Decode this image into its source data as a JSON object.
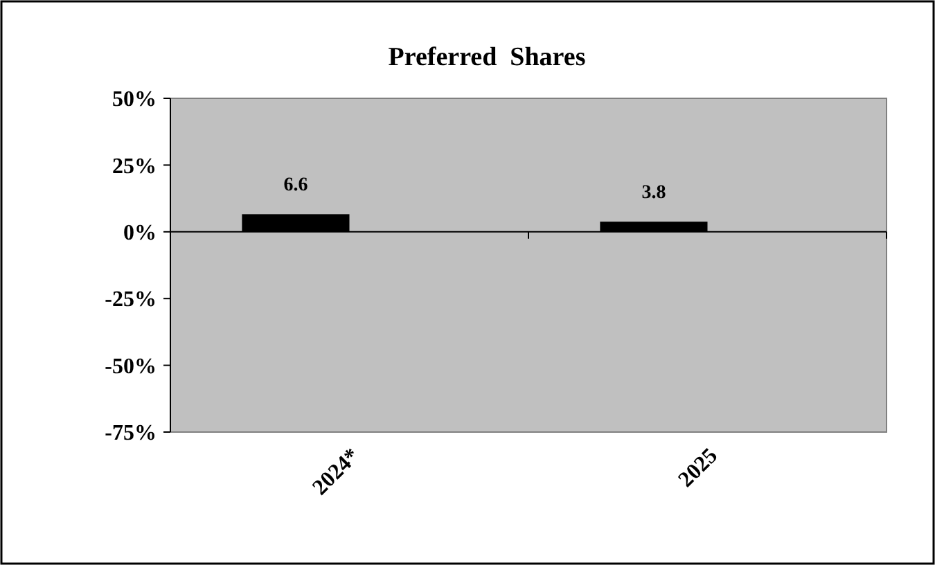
{
  "chart_data": {
    "type": "bar",
    "title": "Preferred  Shares",
    "categories": [
      "2024*",
      "2025"
    ],
    "values": [
      6.6,
      3.8
    ],
    "color": "#000000",
    "ylim": [
      -75,
      50
    ],
    "yticks": [
      {
        "value": -75,
        "label": "-75%"
      },
      {
        "value": -50,
        "label": "-50%"
      },
      {
        "value": -25,
        "label": "-25%"
      },
      {
        "value": 0,
        "label": "0%"
      },
      {
        "value": 25,
        "label": "25%"
      },
      {
        "value": 50,
        "label": "50%"
      }
    ],
    "data_labels": true
  }
}
